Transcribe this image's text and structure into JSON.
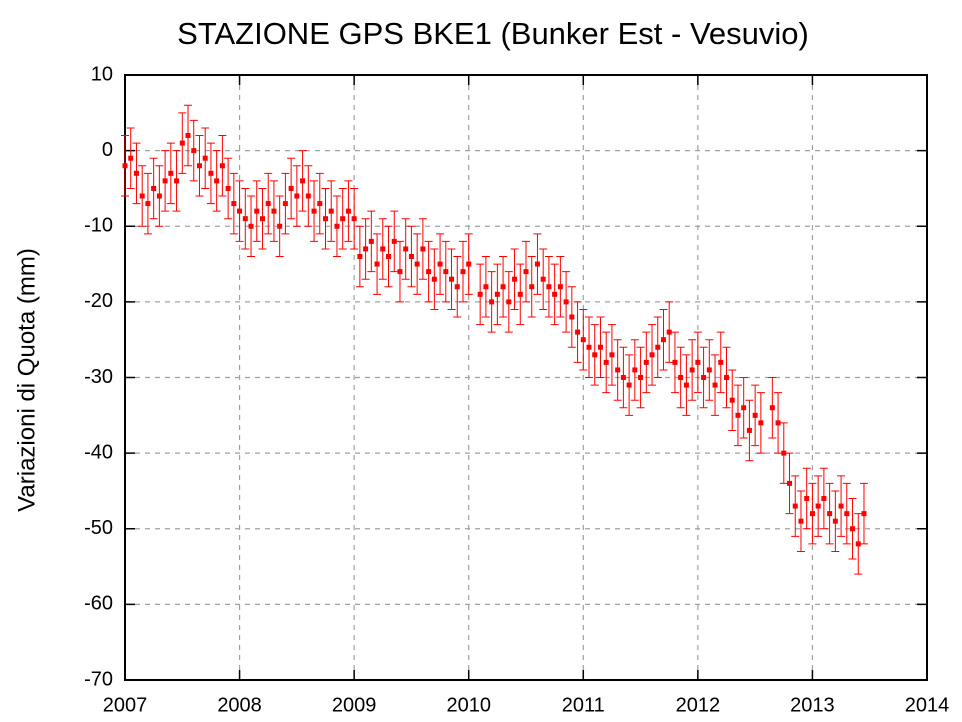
{
  "chart_data": {
    "type": "scatter",
    "title": "STAZIONE GPS BKE1 (Bunker Est - Vesuvio)",
    "y_label": "Variazioni di Quota (mm)",
    "color": "#ff0000",
    "error": 4,
    "xlim": [
      2007,
      2014
    ],
    "xticks": [
      2007,
      2008,
      2009,
      2010,
      2011,
      2012,
      2013,
      2014
    ],
    "ylim": [
      -70,
      10
    ],
    "yticks": [
      -70,
      -60,
      -50,
      -40,
      -30,
      -20,
      -10,
      0,
      10
    ],
    "grid": true,
    "x": [
      2007.0,
      2007.05,
      2007.1,
      2007.15,
      2007.2,
      2007.25,
      2007.3,
      2007.35,
      2007.4,
      2007.45,
      2007.5,
      2007.55,
      2007.6,
      2007.65,
      2007.7,
      2007.75,
      2007.8,
      2007.85,
      2007.9,
      2007.95,
      2008.0,
      2008.05,
      2008.1,
      2008.15,
      2008.2,
      2008.25,
      2008.3,
      2008.35,
      2008.4,
      2008.45,
      2008.5,
      2008.55,
      2008.6,
      2008.65,
      2008.7,
      2008.75,
      2008.8,
      2008.85,
      2008.9,
      2008.95,
      2009.0,
      2009.05,
      2009.1,
      2009.15,
      2009.2,
      2009.25,
      2009.3,
      2009.35,
      2009.4,
      2009.45,
      2009.5,
      2009.55,
      2009.6,
      2009.65,
      2009.7,
      2009.75,
      2009.8,
      2009.85,
      2009.9,
      2009.95,
      2010.0,
      2010.1,
      2010.15,
      2010.2,
      2010.25,
      2010.3,
      2010.35,
      2010.4,
      2010.45,
      2010.5,
      2010.55,
      2010.6,
      2010.65,
      2010.7,
      2010.75,
      2010.8,
      2010.85,
      2010.9,
      2010.95,
      2011.0,
      2011.05,
      2011.1,
      2011.15,
      2011.2,
      2011.25,
      2011.3,
      2011.35,
      2011.4,
      2011.45,
      2011.5,
      2011.55,
      2011.6,
      2011.65,
      2011.7,
      2011.75,
      2011.8,
      2011.85,
      2011.9,
      2011.95,
      2012.0,
      2012.05,
      2012.1,
      2012.15,
      2012.2,
      2012.25,
      2012.3,
      2012.35,
      2012.4,
      2012.45,
      2012.5,
      2012.55,
      2012.65,
      2012.7,
      2012.75,
      2012.8,
      2012.85,
      2012.9,
      2012.95,
      2013.0,
      2013.05,
      2013.1,
      2013.15,
      2013.2,
      2013.25,
      2013.3,
      2013.35,
      2013.4,
      2013.45
    ],
    "values": [
      -2,
      -1,
      -3,
      -6,
      -7,
      -5,
      -6,
      -4,
      -3,
      -4,
      1,
      2,
      0,
      -2,
      -1,
      -3,
      -4,
      -2,
      -5,
      -7,
      -8,
      -9,
      -10,
      -8,
      -9,
      -7,
      -8,
      -10,
      -7,
      -5,
      -6,
      -4,
      -6,
      -8,
      -7,
      -9,
      -8,
      -10,
      -9,
      -8,
      -9,
      -14,
      -13,
      -12,
      -15,
      -13,
      -14,
      -12,
      -16,
      -13,
      -14,
      -15,
      -13,
      -16,
      -17,
      -15,
      -16,
      -17,
      -18,
      -16,
      -15,
      -19,
      -18,
      -20,
      -19,
      -18,
      -20,
      -17,
      -19,
      -16,
      -18,
      -15,
      -17,
      -18,
      -19,
      -18,
      -20,
      -22,
      -24,
      -25,
      -26,
      -27,
      -26,
      -28,
      -27,
      -29,
      -30,
      -31,
      -29,
      -30,
      -28,
      -27,
      -26,
      -25,
      -24,
      -28,
      -30,
      -31,
      -29,
      -28,
      -30,
      -29,
      -31,
      -28,
      -30,
      -33,
      -35,
      -34,
      -37,
      -35,
      -36,
      -34,
      -36,
      -40,
      -44,
      -47,
      -49,
      -46,
      -48,
      -47,
      -46,
      -48,
      -49,
      -47,
      -48,
      -50,
      -52,
      -48
    ]
  }
}
